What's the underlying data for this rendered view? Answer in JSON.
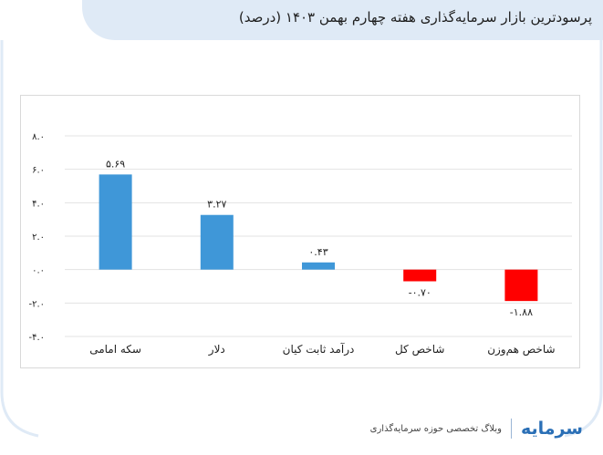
{
  "header": {
    "title": "پرسودترین بازار سرمایه‌گذاری هفته چهارم بهمن ۱۴۰۳ (درصد)"
  },
  "footer": {
    "logo": "سرمایه",
    "tagline": "وبلاگ تخصصی حوزه سرمایه‌گذاری"
  },
  "colors": {
    "positive": "#3f97d8",
    "negative": "#ff0000",
    "frame": "#dfeaf6"
  },
  "chart_data": {
    "type": "bar",
    "categories": [
      "سکه امامی",
      "دلار",
      "درآمد ثابت کیان",
      "شاخص کل",
      "شاخص هم‌وزن"
    ],
    "values": [
      5.69,
      3.27,
      0.43,
      -0.7,
      -1.88
    ],
    "value_labels": [
      "۵.۶۹",
      "۳.۲۷",
      "۰.۴۳",
      "-۰.۷۰",
      "-۱.۸۸"
    ],
    "yticks": [
      8.0,
      6.0,
      4.0,
      2.0,
      0.0,
      -2.0,
      -4.0
    ],
    "ytick_labels": [
      "۸.۰",
      "۶.۰",
      "۴.۰",
      "۲.۰",
      "۰.۰",
      "-۲.۰",
      "-۴.۰"
    ],
    "ylim": [
      -4.0,
      8.0
    ],
    "grid": true,
    "legend": "none",
    "title": "",
    "xlabel": "",
    "ylabel": ""
  }
}
